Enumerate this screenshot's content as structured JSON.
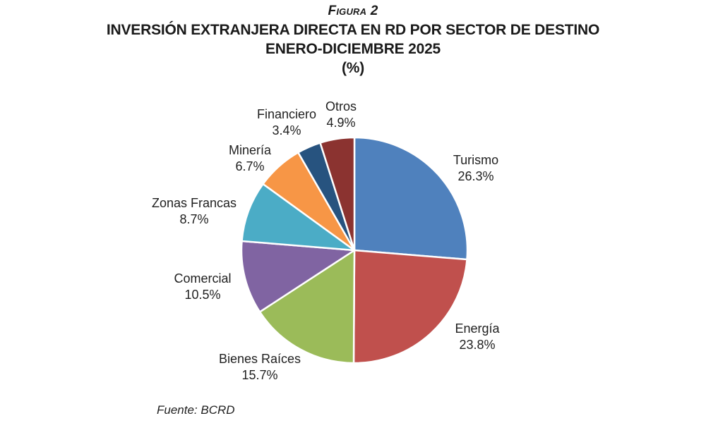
{
  "figure": {
    "label": "Figura 2",
    "title_line1": "INVERSIÓN EXTRANJERA DIRECTA EN RD POR SECTOR DE DESTINO",
    "title_line2": "ENERO-DICIEMBRE 2025",
    "title_line3": "(%)",
    "source": "Fuente: BCRD"
  },
  "chart_data": {
    "type": "pie",
    "title": "Inversión Extranjera Directa en RD por Sector de Destino, Enero-Diciembre 2025 (%)",
    "unit": "%",
    "start_angle_deg_from_top": 0,
    "direction": "clockwise",
    "total": 100.0,
    "slices": [
      {
        "name": "Turismo",
        "value": 26.3,
        "pct_label": "26.3%",
        "color": "#4F81BD"
      },
      {
        "name": "Energía",
        "value": 23.8,
        "pct_label": "23.8%",
        "color": "#C0504D"
      },
      {
        "name": "Bienes Raíces",
        "value": 15.7,
        "pct_label": "15.7%",
        "color": "#9BBB59"
      },
      {
        "name": "Comercial",
        "value": 10.5,
        "pct_label": "10.5%",
        "color": "#8064A2"
      },
      {
        "name": "Zonas Francas",
        "value": 8.7,
        "pct_label": "8.7%",
        "color": "#4BACC6"
      },
      {
        "name": "Minería",
        "value": 6.7,
        "pct_label": "6.7%",
        "color": "#F79646"
      },
      {
        "name": "Financiero",
        "value": 3.4,
        "pct_label": "3.4%",
        "color": "#27537F"
      },
      {
        "name": "Otros",
        "value": 4.9,
        "pct_label": "4.9%",
        "color": "#8B3330"
      }
    ]
  }
}
